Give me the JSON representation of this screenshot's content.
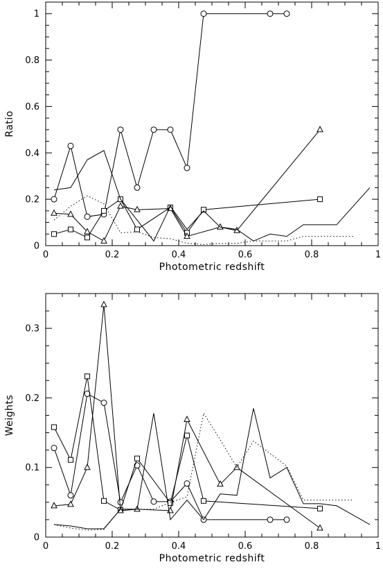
{
  "chart_data": [
    {
      "type": "line",
      "xlabel": "Photometric redshift",
      "ylabel": "Ratio",
      "xlim": [
        0,
        1
      ],
      "ylim": [
        0,
        1.05
      ],
      "xticks": [
        0,
        0.2,
        0.4,
        0.6,
        0.8,
        1
      ],
      "xtick_labels": [
        "0",
        "0.2",
        "0.4",
        "0.6",
        "0.8",
        "1"
      ],
      "yticks": [
        0,
        0.2,
        0.4,
        0.6,
        0.8,
        1
      ],
      "ytick_labels": [
        "0",
        "0.2",
        "0.4",
        "0.6",
        "0.8",
        "1"
      ],
      "series": [
        {
          "marker": "circle",
          "style": "solid",
          "x": [
            0.025,
            0.075,
            0.125,
            0.175,
            0.225,
            0.275,
            0.325,
            0.375,
            0.425,
            0.475,
            0.675,
            0.725
          ],
          "y": [
            0.2,
            0.43,
            0.125,
            0.135,
            0.5,
            0.25,
            0.5,
            0.5,
            0.335,
            1.0,
            1.0,
            1.0
          ]
        },
        {
          "marker": "square",
          "style": "solid",
          "x": [
            0.025,
            0.075,
            0.125,
            0.175,
            0.225,
            0.275,
            0.375,
            0.425,
            0.475,
            0.825
          ],
          "y": [
            0.05,
            0.07,
            0.035,
            0.15,
            0.2,
            0.07,
            0.165,
            0.055,
            0.155,
            0.2
          ]
        },
        {
          "marker": "triangle",
          "style": "solid",
          "x": [
            0.025,
            0.075,
            0.125,
            0.175,
            0.225,
            0.275,
            0.375,
            0.425,
            0.525,
            0.575,
            0.825
          ],
          "y": [
            0.14,
            0.135,
            0.06,
            0.02,
            0.17,
            0.155,
            0.16,
            0.04,
            0.08,
            0.065,
            0.5
          ]
        },
        {
          "marker": "none",
          "style": "solid",
          "x": [
            0.025,
            0.075,
            0.125,
            0.175,
            0.225,
            0.275,
            0.325,
            0.375,
            0.425,
            0.475,
            0.525,
            0.575,
            0.625,
            0.675,
            0.725,
            0.775,
            0.825,
            0.875,
            0.975
          ],
          "y": [
            0.24,
            0.25,
            0.37,
            0.41,
            0.2,
            0.11,
            0.02,
            0.17,
            0.07,
            0.15,
            0.08,
            0.07,
            0.02,
            0.05,
            0.04,
            0.09,
            0.09,
            0.09,
            0.25
          ]
        },
        {
          "marker": "none",
          "style": "dotted",
          "x": [
            0.025,
            0.075,
            0.125,
            0.175,
            0.225,
            0.275,
            0.325,
            0.375,
            0.425,
            0.475,
            0.525,
            0.575,
            0.625,
            0.675,
            0.725,
            0.775,
            0.825,
            0.875,
            0.925
          ],
          "y": [
            0.11,
            0.17,
            0.215,
            0.18,
            0.055,
            0.06,
            0.035,
            0.03,
            0.01,
            0.005,
            0.01,
            0.01,
            0.02,
            0.02,
            0.02,
            0.04,
            0.04,
            0.04,
            0.04
          ]
        }
      ]
    },
    {
      "type": "line",
      "xlabel": "Photometric redshift",
      "ylabel": "Weights",
      "xlim": [
        0,
        1
      ],
      "ylim": [
        0,
        0.35
      ],
      "xticks": [
        0,
        0.2,
        0.4,
        0.6,
        0.8,
        1
      ],
      "xtick_labels": [
        "0",
        "0.2",
        "0.4",
        "0.6",
        "0.8",
        "1"
      ],
      "yticks": [
        0,
        0.1,
        0.2,
        0.3
      ],
      "ytick_labels": [
        "0",
        "0.1",
        "0.2",
        "0.3"
      ],
      "series": [
        {
          "marker": "circle",
          "style": "solid",
          "x": [
            0.025,
            0.075,
            0.125,
            0.175,
            0.225,
            0.275,
            0.325,
            0.375,
            0.425,
            0.475,
            0.675,
            0.725
          ],
          "y": [
            0.128,
            0.06,
            0.206,
            0.193,
            0.05,
            0.103,
            0.051,
            0.051,
            0.077,
            0.025,
            0.025,
            0.025
          ]
        },
        {
          "marker": "square",
          "style": "solid",
          "x": [
            0.025,
            0.075,
            0.125,
            0.175,
            0.225,
            0.275,
            0.375,
            0.425,
            0.475,
            0.825
          ],
          "y": [
            0.158,
            0.111,
            0.231,
            0.052,
            0.039,
            0.113,
            0.049,
            0.146,
            0.052,
            0.041
          ]
        },
        {
          "marker": "triangle",
          "style": "solid",
          "x": [
            0.025,
            0.075,
            0.125,
            0.175,
            0.225,
            0.275,
            0.375,
            0.425,
            0.525,
            0.575,
            0.825
          ],
          "y": [
            0.045,
            0.047,
            0.1,
            0.334,
            0.038,
            0.04,
            0.038,
            0.169,
            0.076,
            0.1,
            0.013
          ]
        },
        {
          "marker": "none",
          "style": "solid",
          "x": [
            0.025,
            0.075,
            0.125,
            0.175,
            0.225,
            0.275,
            0.325,
            0.375,
            0.425,
            0.475,
            0.525,
            0.575,
            0.625,
            0.675,
            0.725,
            0.775,
            0.825,
            0.875,
            0.975
          ],
          "y": [
            0.018,
            0.016,
            0.012,
            0.012,
            0.04,
            0.04,
            0.178,
            0.025,
            0.053,
            0.025,
            0.062,
            0.06,
            0.185,
            0.085,
            0.1,
            0.048,
            0.048,
            0.045,
            0.018
          ]
        },
        {
          "marker": "none",
          "style": "dotted",
          "x": [
            0.025,
            0.075,
            0.125,
            0.175,
            0.225,
            0.275,
            0.325,
            0.375,
            0.425,
            0.475,
            0.525,
            0.575,
            0.625,
            0.675,
            0.725,
            0.775,
            0.825,
            0.875,
            0.925
          ],
          "y": [
            0.018,
            0.013,
            0.01,
            0.011,
            0.04,
            0.04,
            0.04,
            0.05,
            0.058,
            0.178,
            0.14,
            0.1,
            0.138,
            0.12,
            0.102,
            0.053,
            0.053,
            0.053,
            0.053
          ]
        }
      ]
    }
  ]
}
